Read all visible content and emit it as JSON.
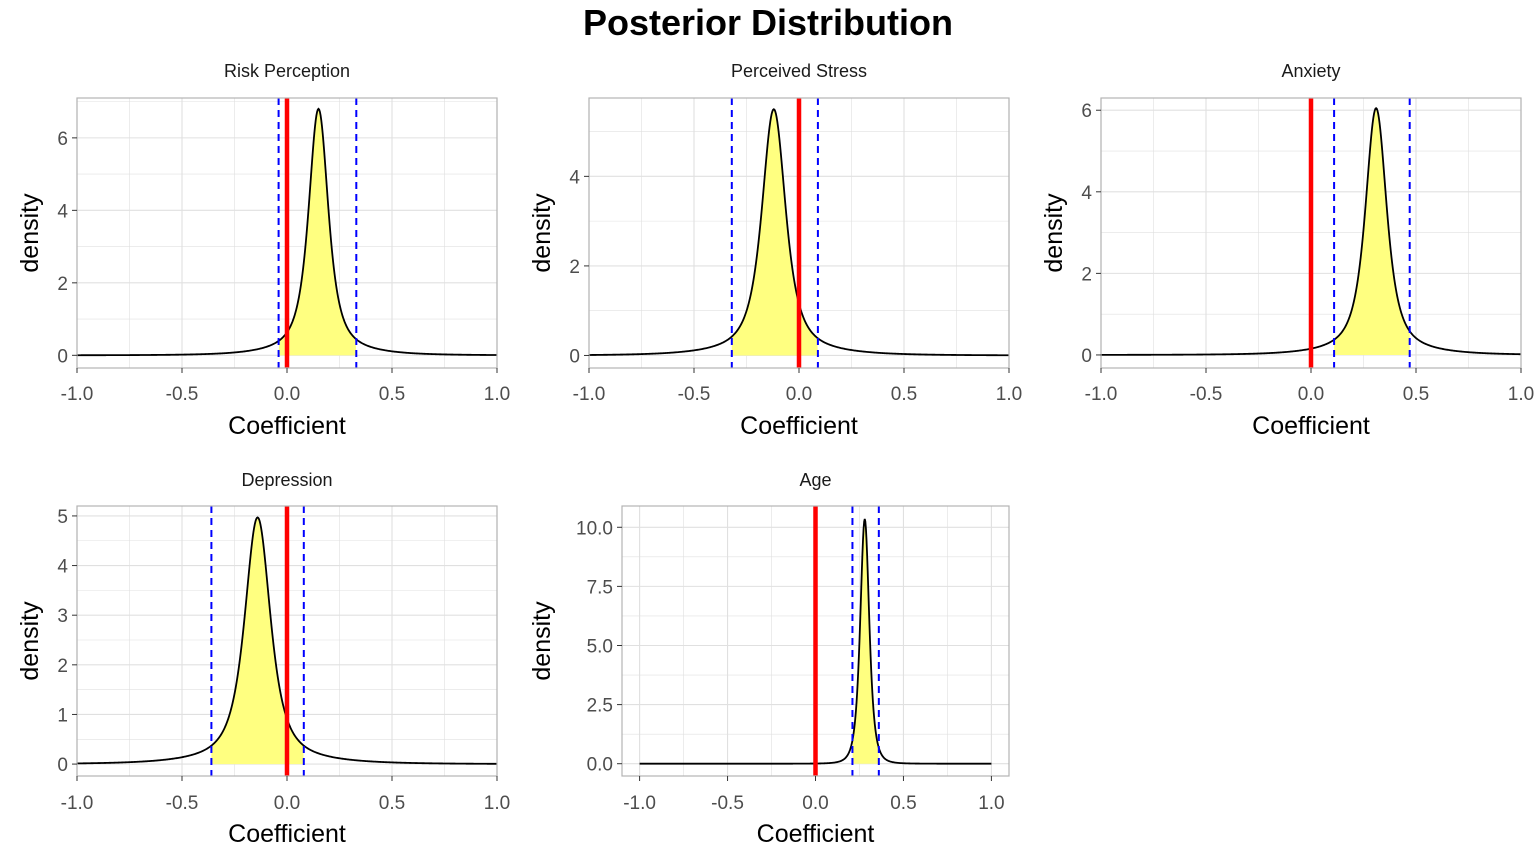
{
  "title": "Posterior Distribution",
  "colors": {
    "fill": "#ffff80",
    "curve": "#000000",
    "zero_line": "#ff0000",
    "interval_line": "#0000ff",
    "grid": "#e0e0e0",
    "border": "#b3b3b3"
  },
  "chart_data": [
    {
      "type": "area",
      "title": "Risk Perception",
      "xlabel": "Coefficient",
      "ylabel": "density",
      "xlim": [
        -1,
        1
      ],
      "ylim": [
        -0.35,
        7.1
      ],
      "x_ticks": [
        -1.0,
        -0.5,
        0.0,
        0.5,
        1.0
      ],
      "x_tick_labels": [
        "-1.0",
        "-0.5",
        "0.0",
        "0.5",
        "1.0"
      ],
      "y_ticks": [
        0,
        2,
        4,
        6
      ],
      "y_tick_labels": [
        "0",
        "2",
        "4",
        "6"
      ],
      "peak": 0.15,
      "height": 6.8,
      "scale": 0.048,
      "tail_weight": 0.06,
      "zero_line": 0.0,
      "interval": [
        -0.04,
        0.33
      ],
      "grid": true
    },
    {
      "type": "area",
      "title": "Perceived Stress",
      "xlabel": "Coefficient",
      "ylabel": "density",
      "xlim": [
        -1,
        1
      ],
      "ylim": [
        -0.28,
        5.75
      ],
      "x_ticks": [
        -1.0,
        -0.5,
        0.0,
        0.5,
        1.0
      ],
      "x_tick_labels": [
        "-1.0",
        "-0.5",
        "0.0",
        "0.5",
        "1.0"
      ],
      "y_ticks": [
        0,
        2,
        4
      ],
      "y_tick_labels": [
        "0",
        "2",
        "4"
      ],
      "peak": -0.12,
      "height": 5.5,
      "scale": 0.058,
      "tail_weight": 0.06,
      "zero_line": 0.0,
      "interval": [
        -0.32,
        0.09
      ],
      "grid": true
    },
    {
      "type": "area",
      "title": "Anxiety",
      "xlabel": "Coefficient",
      "ylabel": "density",
      "xlim": [
        -1,
        1
      ],
      "ylim": [
        -0.32,
        6.3
      ],
      "x_ticks": [
        -1.0,
        -0.5,
        0.0,
        0.5,
        1.0
      ],
      "x_tick_labels": [
        "-1.0",
        "-0.5",
        "0.0",
        "0.5",
        "1.0"
      ],
      "y_ticks": [
        0,
        2,
        4,
        6
      ],
      "y_tick_labels": [
        "0",
        "2",
        "4",
        "6"
      ],
      "peak": 0.31,
      "height": 6.05,
      "scale": 0.052,
      "tail_weight": 0.06,
      "zero_line": 0.0,
      "interval": [
        0.11,
        0.47
      ],
      "grid": true
    },
    {
      "type": "area",
      "title": "Depression",
      "xlabel": "Coefficient",
      "ylabel": "density",
      "xlim": [
        -1,
        1
      ],
      "ylim": [
        -0.24,
        5.2
      ],
      "x_ticks": [
        -1.0,
        -0.5,
        0.0,
        0.5,
        1.0
      ],
      "x_tick_labels": [
        "-1.0",
        "-0.5",
        "0.0",
        "0.5",
        "1.0"
      ],
      "y_ticks": [
        0,
        1,
        2,
        3,
        4,
        5
      ],
      "y_tick_labels": [
        "0",
        "1",
        "2",
        "3",
        "4",
        "5"
      ],
      "peak": -0.14,
      "height": 4.97,
      "scale": 0.063,
      "tail_weight": 0.06,
      "zero_line": 0.0,
      "interval": [
        -0.36,
        0.08
      ],
      "grid": true
    },
    {
      "type": "area",
      "title": "Age",
      "xlabel": "Coefficient",
      "ylabel": "density",
      "xlim": [
        -1.1,
        1.1
      ],
      "ylim": [
        -0.52,
        10.9
      ],
      "x_ticks": [
        -1.0,
        -0.5,
        0.0,
        0.5,
        1.0
      ],
      "x_tick_labels": [
        "-1.0",
        "-0.5",
        "0.0",
        "0.5",
        "1.0"
      ],
      "y_ticks": [
        0.0,
        2.5,
        5.0,
        7.5,
        10.0
      ],
      "y_tick_labels": [
        "0.0",
        "2.5",
        "5.0",
        "7.5",
        "10.0"
      ],
      "peak": 0.28,
      "height": 10.35,
      "scale": 0.027,
      "tail_weight": 0.0,
      "zero_line": 0.0,
      "interval": [
        0.21,
        0.36
      ],
      "grid": true
    }
  ]
}
